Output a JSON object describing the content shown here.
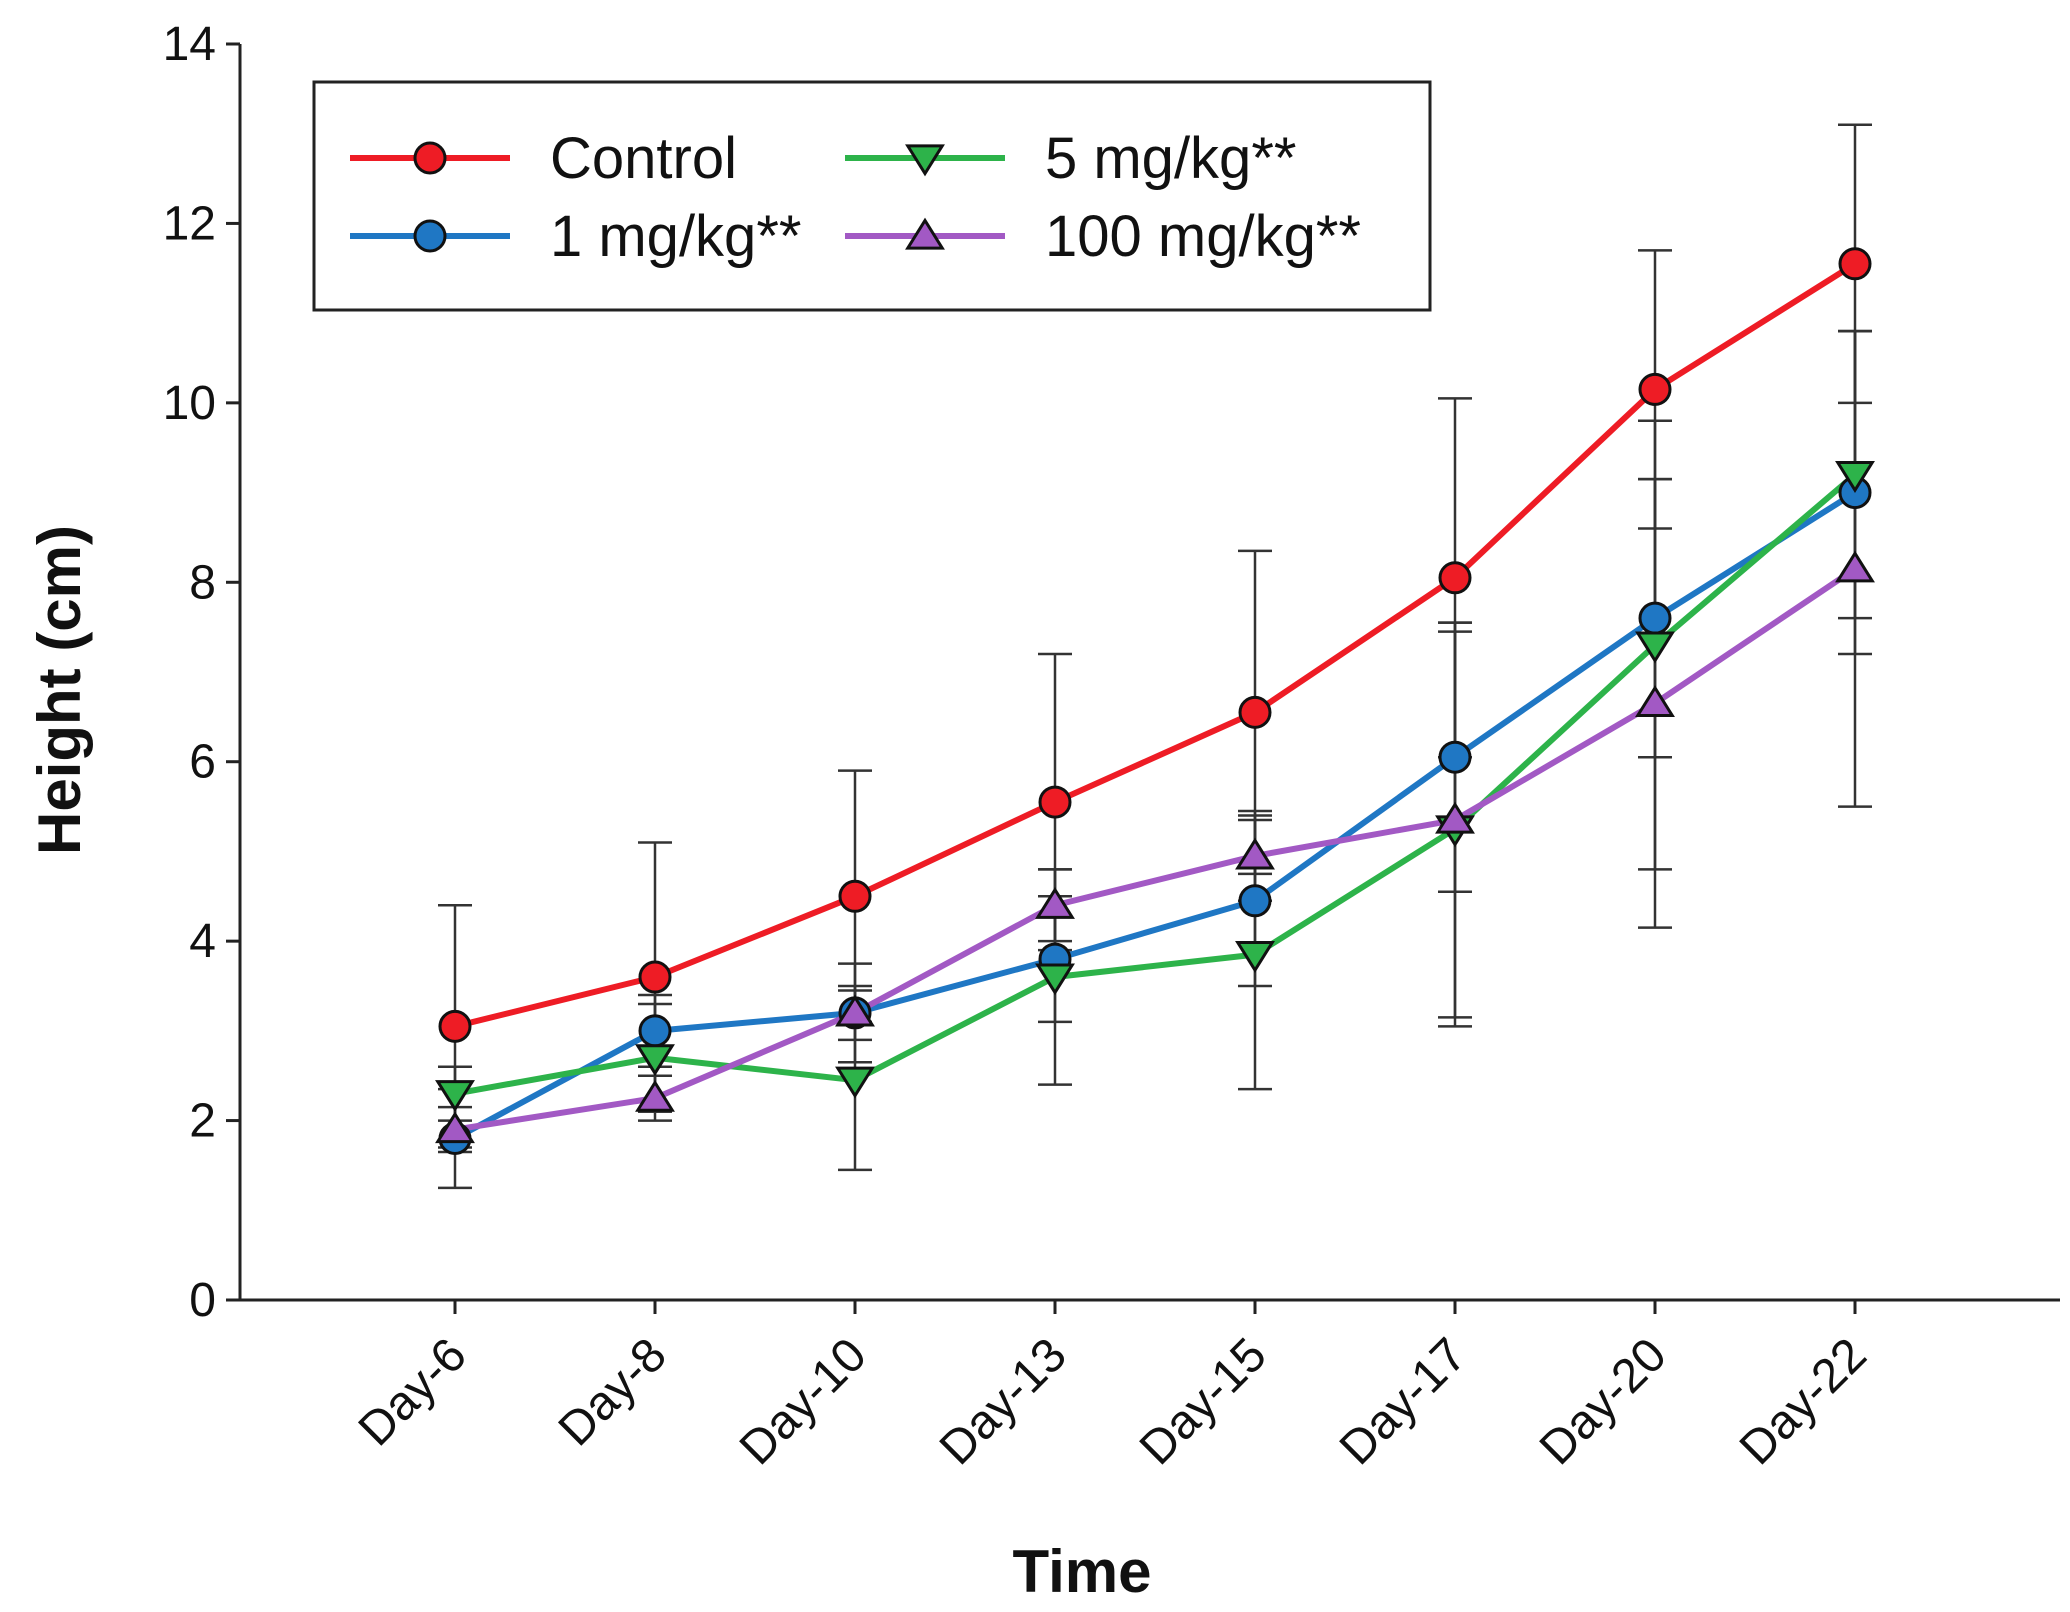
{
  "chart_data": {
    "type": "line",
    "title": "",
    "xlabel": "Time",
    "ylabel": "Height (cm)",
    "ylim": [
      0,
      14
    ],
    "yticks": [
      0,
      2,
      4,
      6,
      8,
      10,
      12,
      14
    ],
    "ytick_labels": [
      "0",
      "2",
      "4",
      "6",
      "8",
      "10",
      "12",
      "14"
    ],
    "categories": [
      "Day-6",
      "Day-8",
      "Day-10",
      "Day-13",
      "Day-15",
      "Day-17",
      "Day-20",
      "Day-22"
    ],
    "grid": false,
    "legend_position": "top-left",
    "series": [
      {
        "name": "Control",
        "color": "#ee1c25",
        "marker": "circle",
        "values": [
          3.05,
          3.6,
          4.5,
          5.55,
          6.55,
          8.05,
          10.15,
          11.55
        ],
        "err": [
          1.35,
          1.5,
          1.4,
          1.65,
          1.8,
          2.0,
          1.55,
          1.55
        ]
      },
      {
        "name": "1 mg/kg**",
        "color": "#1f77c4",
        "marker": "circle",
        "values": [
          1.8,
          3.0,
          3.2,
          3.8,
          4.45,
          6.05,
          7.6,
          9.0
        ],
        "err": [
          0.55,
          0.4,
          0.55,
          0.7,
          0.95,
          1.5,
          1.55,
          1.8
        ]
      },
      {
        "name": "5 mg/kg**",
        "color": "#2db34a",
        "marker": "triangle-down",
        "values": [
          2.3,
          2.7,
          2.45,
          3.6,
          3.85,
          5.25,
          7.3,
          9.2
        ],
        "err": [
          0.3,
          0.6,
          1.0,
          1.2,
          1.5,
          2.2,
          2.5,
          1.6
        ]
      },
      {
        "name": "100 mg/kg**",
        "color": "#a259c4",
        "marker": "triangle-up",
        "values": [
          1.9,
          2.25,
          3.2,
          4.4,
          4.95,
          5.35,
          6.65,
          8.15
        ],
        "err": [
          0.25,
          0.25,
          0.3,
          0.4,
          0.5,
          2.2,
          2.5,
          2.65
        ]
      }
    ]
  }
}
